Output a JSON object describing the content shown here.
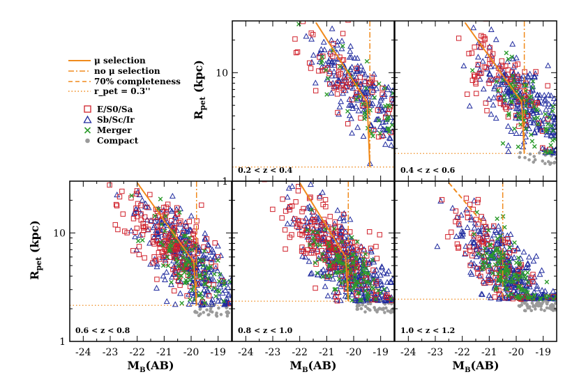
{
  "chart_data": {
    "type": "scatter",
    "figure": {
      "xlabel": "M_B(AB)",
      "ylabel": "R_pet (kpc)",
      "x_range": [
        -24.5,
        -18.5
      ],
      "x_reversed": true,
      "y_log": true,
      "y_range": [
        1,
        30
      ],
      "x_ticks": [
        "-24",
        "-23",
        "-22",
        "-21",
        "-20",
        "-19"
      ],
      "y_ticks": [
        "1",
        "10"
      ]
    },
    "legend": [
      {
        "label": "μ selection",
        "style": "solid",
        "color": "#f08a1c"
      },
      {
        "label": "no μ selection",
        "style": "dashdot",
        "color": "#f08a1c"
      },
      {
        "label": "70% completeness",
        "style": "dashed",
        "color": "#f08a1c"
      },
      {
        "label": "r_pet = 0.3''",
        "style": "dotted",
        "color": "#f08a1c"
      },
      {
        "label": "E/S0/Sa",
        "marker": "square",
        "color": "#d0202a"
      },
      {
        "label": "Sb/Sc/Ir",
        "marker": "triangle",
        "color": "#1f2a9e"
      },
      {
        "label": "Merger",
        "marker": "cross",
        "color": "#2a9a2a"
      },
      {
        "label": "Compact",
        "marker": "dot",
        "color": "#9a9a9a"
      }
    ],
    "panels": [
      {
        "label": "0.2 < z < 0.4",
        "completeness_mag": -19.4,
        "no_mu_mag": -19.4,
        "mu_line": [
          [
            -21.4,
            29
          ],
          [
            -19.5,
            5.3
          ],
          [
            -19.4,
            1.35
          ]
        ],
        "min_radius_kpc": 1.35,
        "n_ell": 75,
        "n_sp": 190,
        "n_mer": 45,
        "n_cmp": 0,
        "x_center": -20.0,
        "y_center": 7.5
      },
      {
        "label": "0.4 < z < 0.6",
        "completeness_mag": -19.7,
        "no_mu_mag": -19.7,
        "mu_line": [
          [
            -21.9,
            29
          ],
          [
            -19.8,
            5.4
          ],
          [
            -19.7,
            1.8
          ]
        ],
        "min_radius_kpc": 1.8,
        "n_ell": 95,
        "n_sp": 260,
        "n_mer": 75,
        "n_cmp": 20,
        "x_center": -20.0,
        "y_center": 6.0
      },
      {
        "label": "0.6 < z < 0.8",
        "completeness_mag": -19.8,
        "no_mu_mag": -19.8,
        "mu_line": [
          [
            -22.0,
            29
          ],
          [
            -19.9,
            5.4
          ],
          [
            -19.8,
            2.15
          ]
        ],
        "min_radius_kpc": 2.15,
        "n_ell": 190,
        "n_sp": 330,
        "n_mer": 95,
        "n_cmp": 35,
        "x_center": -20.4,
        "y_center": 6.5
      },
      {
        "label": "0.8 < z < 1.0",
        "completeness_mag": -20.2,
        "no_mu_mag": -20.2,
        "mu_line": [
          [
            -22.0,
            29
          ],
          [
            -20.3,
            6.0
          ],
          [
            -20.2,
            2.35
          ]
        ],
        "min_radius_kpc": 2.35,
        "n_ell": 200,
        "n_sp": 400,
        "n_mer": 110,
        "n_cmp": 60,
        "x_center": -20.4,
        "y_center": 5.5
      },
      {
        "label": "1.0 < z < 1.2",
        "completeness_mag": -20.5,
        "no_mu_mag": -20.5,
        "mu_line": [
          [
            -22.5,
            29
          ],
          [
            -21.2,
            12
          ]
        ],
        "min_radius_kpc": 2.45,
        "n_ell": 110,
        "n_sp": 330,
        "n_mer": 120,
        "n_cmp": 70,
        "x_center": -20.5,
        "y_center": 4.8
      }
    ]
  }
}
